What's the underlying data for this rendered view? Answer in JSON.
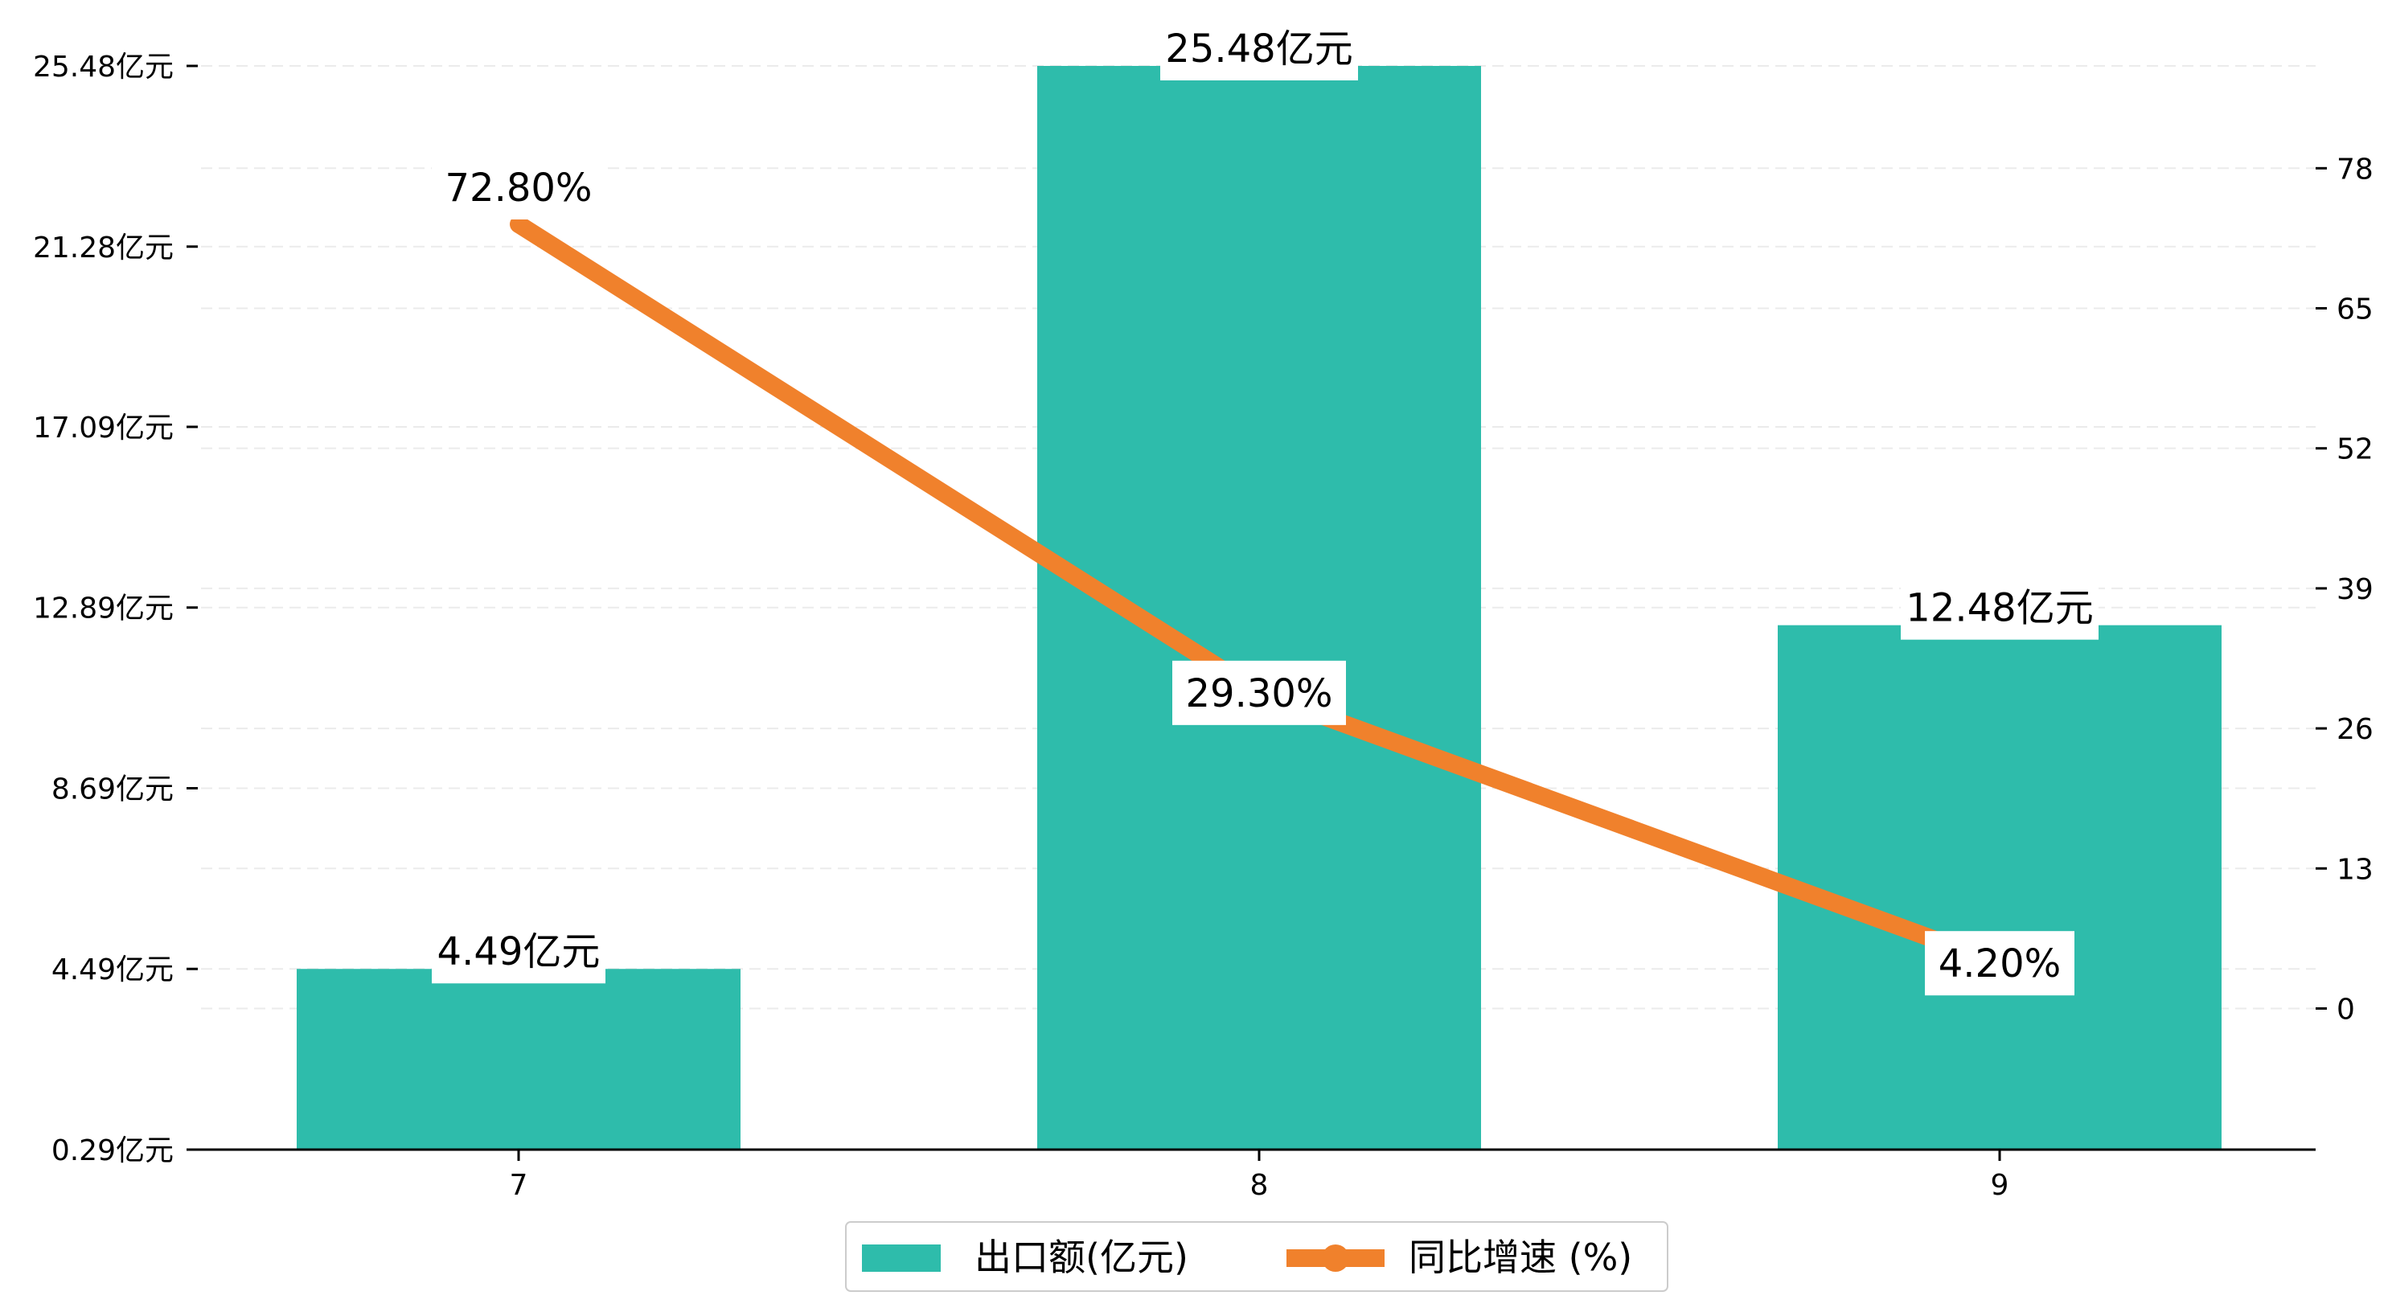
{
  "chart_data": {
    "type": "bar",
    "categories": [
      "7",
      "8",
      "9"
    ],
    "series": [
      {
        "name": "出口额(亿元)",
        "type": "bar",
        "axis": "left",
        "values": [
          4.49,
          25.48,
          12.48
        ],
        "labels": [
          "4.49亿元",
          "25.48亿元",
          "12.48亿元"
        ],
        "color": "#2ebcab"
      },
      {
        "name": "同比增速 (%)",
        "type": "line",
        "axis": "right",
        "values": [
          72.8,
          29.3,
          4.2
        ],
        "labels": [
          "72.80%",
          "29.30%",
          "4.20%"
        ],
        "color": "#f0812c"
      }
    ],
    "y_left": {
      "ylim": [
        0.29,
        25.48
      ],
      "ticks": [
        0.29,
        4.49,
        8.69,
        12.89,
        17.09,
        21.28,
        25.48
      ],
      "tick_labels": [
        "0.29亿元",
        "4.49亿元",
        "8.69亿元",
        "12.89亿元",
        "17.09亿元",
        "21.28亿元",
        "25.48亿元"
      ]
    },
    "y_right": {
      "ylim": [
        -13.1,
        87.5
      ],
      "ticks": [
        0,
        13,
        26,
        39,
        52,
        65,
        78
      ],
      "tick_labels": [
        "0",
        "13",
        "26",
        "39",
        "52",
        "65",
        "78"
      ]
    },
    "grid": true,
    "legend_position": "bottom-center",
    "title": "",
    "xlabel": "",
    "ylabel": ""
  }
}
